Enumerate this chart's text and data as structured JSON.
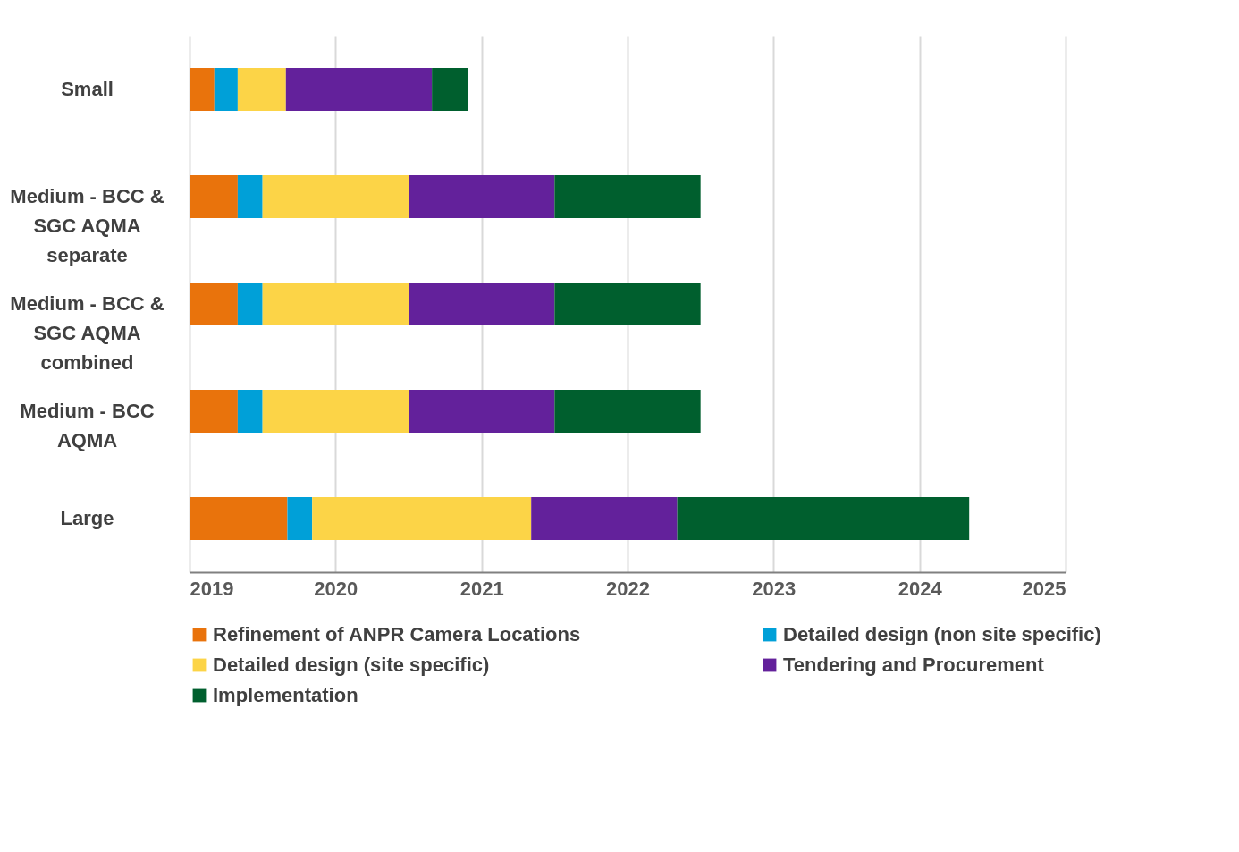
{
  "chart_data": {
    "type": "bar",
    "orientation": "horizontal",
    "categories": [
      "Small",
      "Medium - BCC & SGC AQMA separate",
      "Medium - BCC & SGC AQMA combined",
      "Medium - BCC AQMA",
      "Large"
    ],
    "series": [
      {
        "name": "Refinement of ANPR Camera Locations",
        "color": "#e9730c",
        "base": [
          2019,
          2019,
          2019,
          2019,
          2019
        ],
        "values": [
          0.17,
          0.33,
          0.33,
          0.33,
          0.67
        ]
      },
      {
        "name": "Detailed design (non site specific)",
        "color": "#00a0d8",
        "base": [
          2019.17,
          2019.33,
          2019.33,
          2019.33,
          2019.67
        ],
        "values": [
          0.16,
          0.17,
          0.17,
          0.17,
          0.17
        ]
      },
      {
        "name": "Detailed design (site specific)",
        "color": "#fcd447",
        "base": [
          2019.33,
          2019.5,
          2019.5,
          2019.5,
          2019.84
        ],
        "values": [
          0.33,
          1.0,
          1.0,
          1.0,
          1.5
        ]
      },
      {
        "name": "Tendering and Procurement",
        "color": "#63219b",
        "base": [
          2019.66,
          2020.5,
          2020.5,
          2020.5,
          2021.34
        ],
        "values": [
          1.0,
          1.0,
          1.0,
          1.0,
          1.0
        ]
      },
      {
        "name": "Implementation",
        "color": "#005f2e",
        "base": [
          2020.66,
          2021.5,
          2021.5,
          2021.5,
          2022.34
        ],
        "values": [
          0.25,
          1.0,
          1.0,
          1.0,
          2.0
        ]
      }
    ],
    "xlim": [
      2019,
      2025
    ],
    "xticks": [
      2019,
      2020,
      2021,
      2022,
      2023,
      2024,
      2025
    ],
    "grid": "x",
    "legend": "bottom"
  }
}
